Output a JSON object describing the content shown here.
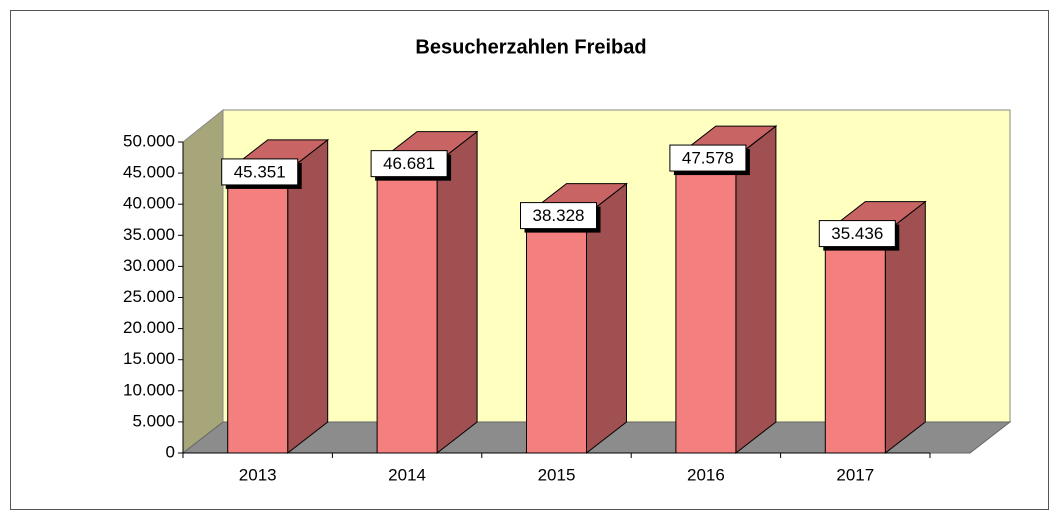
{
  "chart_data": {
    "type": "bar3d",
    "title": "Besucherzahlen Freibad",
    "categories": [
      "2013",
      "2014",
      "2015",
      "2016",
      "2017"
    ],
    "values": [
      45351,
      46681,
      38328,
      47578,
      35436
    ],
    "value_labels": [
      "45.351",
      "46.681",
      "38.328",
      "47.578",
      "35.436"
    ],
    "color": "#f47f7f",
    "ylim": [
      0,
      50000
    ],
    "yticks": [
      0,
      {
        "value": 5000,
        "label": "5.000"
      },
      {
        "value": 10000,
        "label": "10.000"
      },
      {
        "value": 15000,
        "label": "15.000"
      },
      {
        "value": 20000,
        "label": "20.000"
      },
      {
        "value": 25000,
        "label": "25.000"
      },
      {
        "value": 30000,
        "label": "30.000"
      },
      {
        "value": 35000,
        "label": "35.000"
      },
      {
        "value": 40000,
        "label": "40.000"
      },
      {
        "value": 45000,
        "label": "45.000"
      },
      {
        "value": 50000,
        "label": "50.000"
      }
    ]
  }
}
